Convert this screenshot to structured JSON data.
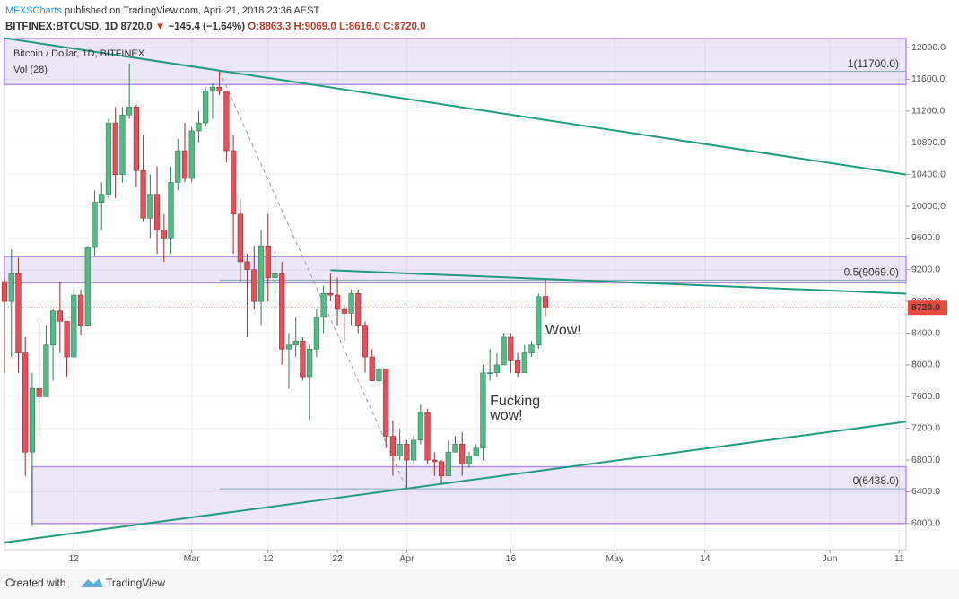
{
  "header": {
    "publisher": "MFXSCharts",
    "published": "published on TradingView.com, April 21, 2018 23:36 AEST",
    "symbol": "BITFINEX:BTCUSD, 1D",
    "last": "8720.0",
    "arrow": "▼",
    "change": "−145.4 (−1.64%)",
    "ohlc": "O:8863.3 H:9069.0 L:8616.0 C:8720.0"
  },
  "chart_data": {
    "type": "candlestick",
    "title": "Bitcoin / Dollar, 1D, BITFINEX",
    "subtitle": "Vol (28)",
    "x": [
      "2018-02-02",
      "2018-02-03",
      "2018-02-04",
      "2018-02-05",
      "2018-02-06",
      "2018-02-07",
      "2018-02-08",
      "2018-02-09",
      "2018-02-10",
      "2018-02-11",
      "2018-02-12",
      "2018-02-13",
      "2018-02-14",
      "2018-02-15",
      "2018-02-16",
      "2018-02-17",
      "2018-02-18",
      "2018-02-19",
      "2018-02-20",
      "2018-02-21",
      "2018-02-22",
      "2018-02-23",
      "2018-02-24",
      "2018-02-25",
      "2018-02-26",
      "2018-02-27",
      "2018-02-28",
      "2018-03-01",
      "2018-03-02",
      "2018-03-03",
      "2018-03-04",
      "2018-03-05",
      "2018-03-06",
      "2018-03-07",
      "2018-03-08",
      "2018-03-09",
      "2018-03-10",
      "2018-03-11",
      "2018-03-12",
      "2018-03-13",
      "2018-03-14",
      "2018-03-15",
      "2018-03-16",
      "2018-03-17",
      "2018-03-18",
      "2018-03-19",
      "2018-03-20",
      "2018-03-21",
      "2018-03-22",
      "2018-03-23",
      "2018-03-24",
      "2018-03-25",
      "2018-03-26",
      "2018-03-27",
      "2018-03-28",
      "2018-03-29",
      "2018-03-30",
      "2018-03-31",
      "2018-04-01",
      "2018-04-02",
      "2018-04-03",
      "2018-04-04",
      "2018-04-05",
      "2018-04-06",
      "2018-04-07",
      "2018-04-08",
      "2018-04-09",
      "2018-04-10",
      "2018-04-11",
      "2018-04-12",
      "2018-04-13",
      "2018-04-14",
      "2018-04-15",
      "2018-04-16",
      "2018-04-17",
      "2018-04-18",
      "2018-04-19",
      "2018-04-20",
      "2018-04-21"
    ],
    "open": [
      9050,
      8800,
      9150,
      8150,
      6900,
      7700,
      7600,
      8250,
      8680,
      8550,
      8100,
      8880,
      8500,
      9480,
      10050,
      10150,
      11050,
      10400,
      11150,
      11250,
      10450,
      9850,
      10150,
      9700,
      9600,
      10300,
      10700,
      10350,
      10950,
      11050,
      11450,
      11500,
      11450,
      10700,
      9900,
      9300,
      9200,
      8800,
      9500,
      9100,
      9150,
      8200,
      8250,
      8300,
      7850,
      8200,
      8600,
      8900,
      8880,
      8700,
      8650,
      8900,
      8500,
      8100,
      7800,
      7950,
      7100,
      6850,
      7000,
      6800,
      7050,
      7400,
      6800,
      6780,
      6600,
      6900,
      7000,
      6750,
      6850,
      6950,
      7900,
      7900,
      8000,
      8350,
      8050,
      7900,
      8150,
      8250,
      8863
    ],
    "high": [
      9100,
      9450,
      9350,
      8350,
      7900,
      8550,
      8500,
      8700,
      9050,
      8550,
      8950,
      8950,
      9500,
      10200,
      10300,
      11100,
      11250,
      11250,
      11800,
      11280,
      10900,
      10400,
      10500,
      9900,
      10500,
      10850,
      11050,
      11000,
      11200,
      11500,
      11550,
      11700,
      11450,
      10900,
      10100,
      9400,
      9500,
      9700,
      9900,
      9400,
      9300,
      8400,
      8600,
      8350,
      8250,
      8700,
      9000,
      9150,
      9100,
      8750,
      8950,
      8950,
      8550,
      8200,
      8000,
      7950,
      7300,
      7200,
      7050,
      7100,
      7500,
      7450,
      6900,
      6800,
      7050,
      7100,
      7150,
      6900,
      7000,
      8000,
      8200,
      8150,
      8400,
      8400,
      8150,
      8250,
      8300,
      8900,
      9069
    ],
    "low": [
      7900,
      8100,
      7900,
      6600,
      5970,
      7150,
      7600,
      7800,
      8150,
      7850,
      8100,
      8370,
      8500,
      9380,
      9700,
      10100,
      10100,
      10300,
      11100,
      10250,
      9800,
      9600,
      9400,
      9300,
      9400,
      10200,
      10300,
      10300,
      10800,
      11000,
      11100,
      11400,
      10550,
      9400,
      9050,
      8350,
      8700,
      8500,
      8800,
      8900,
      8000,
      7700,
      8100,
      7800,
      7300,
      8100,
      8400,
      8800,
      8500,
      8300,
      8500,
      8400,
      7900,
      7800,
      7750,
      6950,
      6600,
      6800,
      6450,
      6750,
      7000,
      6750,
      6600,
      6500,
      6600,
      6900,
      6600,
      6700,
      6850,
      6800,
      7800,
      7850,
      8000,
      7900,
      7850,
      7900,
      8100,
      8200,
      8616
    ],
    "close": [
      8800,
      9150,
      8150,
      6900,
      7700,
      7600,
      8250,
      8680,
      8550,
      8100,
      8880,
      8500,
      9480,
      10050,
      10150,
      11050,
      10400,
      11150,
      11250,
      10450,
      9850,
      10150,
      9700,
      9600,
      10300,
      10700,
      10350,
      10950,
      11050,
      11450,
      11500,
      11450,
      10700,
      9900,
      9300,
      9200,
      8800,
      9500,
      9100,
      9150,
      8200,
      8250,
      8300,
      7850,
      8200,
      8600,
      8900,
      8880,
      8700,
      8650,
      8900,
      8500,
      8100,
      7800,
      7950,
      7100,
      6850,
      7000,
      6800,
      7050,
      7400,
      6800,
      6780,
      6600,
      6900,
      7000,
      6750,
      6850,
      6950,
      7900,
      7900,
      8000,
      8350,
      8050,
      7900,
      8150,
      8250,
      8860,
      8720
    ],
    "up_color": "#53b987",
    "down_color": "#eb4d5c",
    "xlim": [
      "2018-02-02",
      "2018-06-12"
    ],
    "xticks": [
      {
        "value": "2018-02-12",
        "label": "12"
      },
      {
        "value": "2018-03-01",
        "label": "Mar"
      },
      {
        "value": "2018-03-12",
        "label": "12"
      },
      {
        "value": "2018-03-22",
        "label": "22"
      },
      {
        "value": "2018-04-01",
        "label": "Apr"
      },
      {
        "value": "2018-04-16",
        "label": "16"
      },
      {
        "value": "2018-05-01",
        "label": "May"
      },
      {
        "value": "2018-05-14",
        "label": "14"
      },
      {
        "value": "2018-06-01",
        "label": "Jun"
      },
      {
        "value": "2018-06-11",
        "label": "11"
      }
    ],
    "ylim": [
      5670,
      12114
    ],
    "yticks": [
      {
        "value": 6000,
        "label": "6000.0"
      },
      {
        "value": 6400,
        "label": "6400.0"
      },
      {
        "value": 6800,
        "label": "6800.0"
      },
      {
        "value": 7200,
        "label": "7200.0"
      },
      {
        "value": 7600,
        "label": "7600.0"
      },
      {
        "value": 8000,
        "label": "8000.0"
      },
      {
        "value": 8400,
        "label": "8400.0"
      },
      {
        "value": 8800,
        "label": "8800.0"
      },
      {
        "value": 9200,
        "label": "9200.0"
      },
      {
        "value": 9600,
        "label": "9600.0"
      },
      {
        "value": 10000,
        "label": "10000.0"
      },
      {
        "value": 10400,
        "label": "10400.0"
      },
      {
        "value": 10800,
        "label": "10800.0"
      },
      {
        "value": 11200,
        "label": "11200.0"
      },
      {
        "value": 11600,
        "label": "11600.0"
      },
      {
        "value": 12000,
        "label": "12000.0"
      }
    ],
    "last_price": {
      "value": 8720,
      "label": "8720.0"
    },
    "zones": [
      {
        "from": "2018-02-02",
        "low": 11534,
        "high": 12114
      },
      {
        "from": "2018-02-02",
        "low": 9034,
        "high": 9364
      },
      {
        "from": "2018-02-06",
        "low": 6000,
        "high": 6716
      }
    ],
    "trendlines": [
      {
        "x": [
          "2018-02-02",
          "2018-06-12"
        ],
        "y": [
          12120,
          10400
        ]
      },
      {
        "x": [
          "2018-03-21",
          "2018-06-12"
        ],
        "y": [
          9193,
          8898
        ]
      },
      {
        "x": [
          "2018-02-02",
          "2018-06-12"
        ],
        "y": [
          5761,
          7284
        ]
      }
    ],
    "fib": {
      "x": [
        "2018-03-05",
        "2018-04-01"
      ],
      "y": [
        11700,
        6438
      ],
      "levels": [
        {
          "value": 11700,
          "label": "1(11700.0)"
        },
        {
          "value": 9069,
          "label": "0.5(9069.0)"
        },
        {
          "value": 6438,
          "label": "0(6438.0)"
        }
      ]
    },
    "notes": [
      {
        "x": "2018-04-21",
        "y": 8430,
        "lines": [
          "Wow!"
        ]
      },
      {
        "x": "2018-04-13",
        "y": 7540,
        "lines": [
          "Fucking",
          "wow!"
        ]
      }
    ]
  },
  "footer": {
    "created": "Created with",
    "brand": "TradingView"
  }
}
